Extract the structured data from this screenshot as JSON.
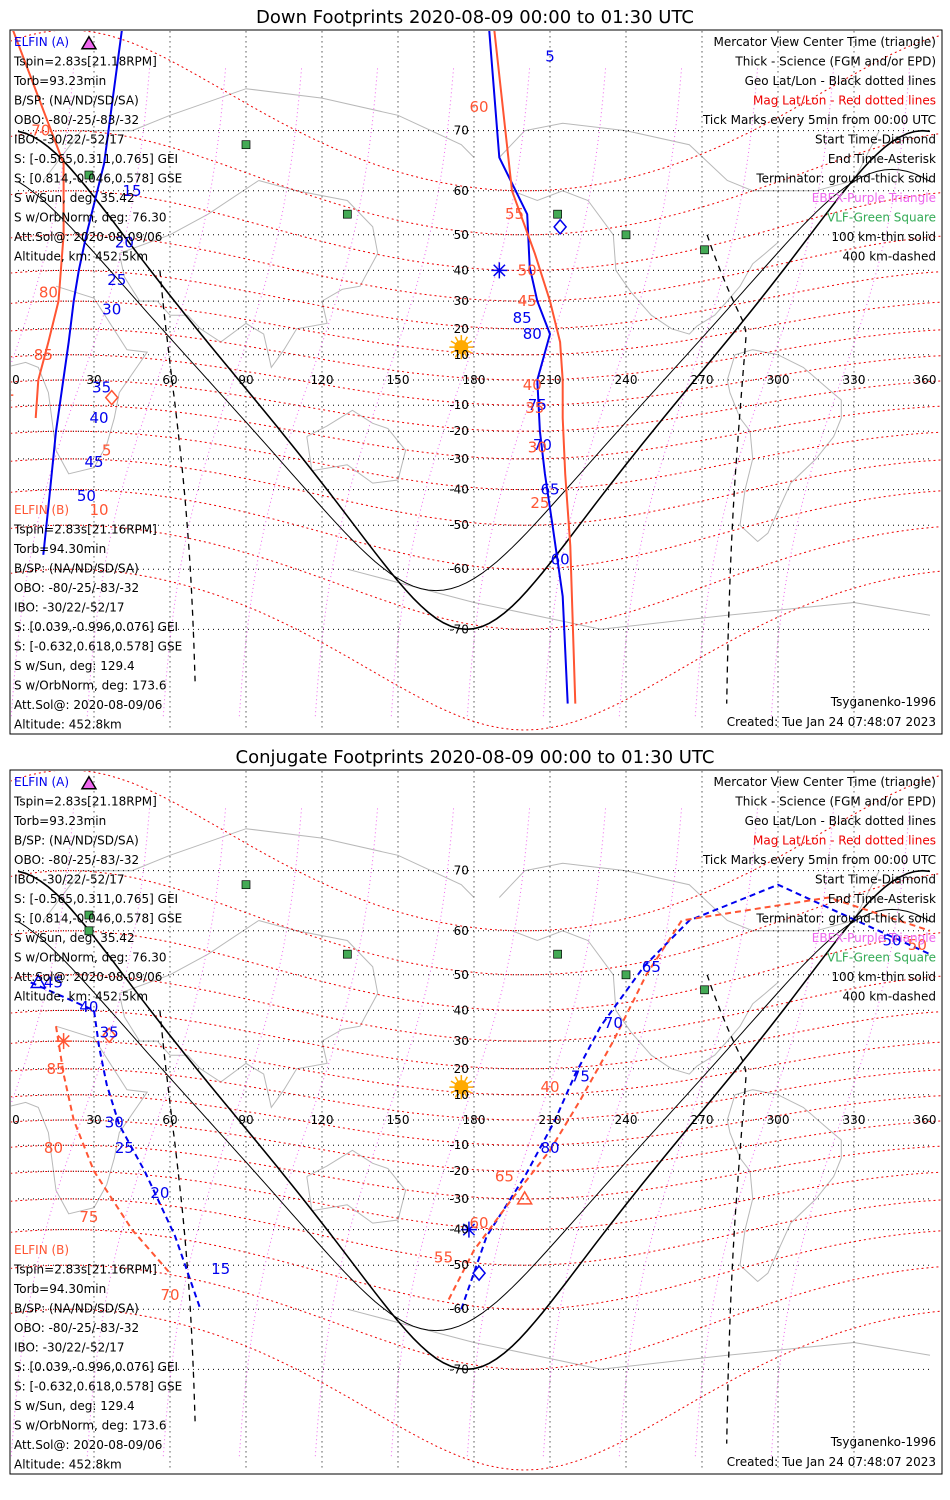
{
  "colors": {
    "elfin_a": "#0000ee",
    "elfin_b": "#ff5533",
    "geo_grid": "#000000",
    "mag_grid": "#ee0000",
    "ebex": "#ee66ee",
    "vlf": "#33aa55",
    "vlf_marker": "#44aa55",
    "sun": "#ffaa00",
    "coast": "#b8b8b8"
  },
  "panels": [
    {
      "id": "down",
      "title": "Down Footprints 2020-08-09 00:00 to 01:30 UTC",
      "left_a": [
        "ELFIN (A)",
        "Tspin=2.83s[21.18RPM]",
        "Torb=93.23min",
        "B/SP: (NA/ND/SD/SA)",
        "OBO: -80/-25/-83/-32",
        "IBO: -30/22/-52/17",
        "S: [-0.565,0.311,0.765] GEI",
        "S: [0.814,-0.046,0.578] GSE",
        "S w/Sun, deg: 35.42",
        "S w/OrbNorm, deg: 76.30",
        "Att.Sol@: 2020-08-09/06",
        "Altitude, km: 452.5km"
      ],
      "left_b": [
        "ELFIN (B)",
        "Tspin=2.83s[21.16RPM]",
        "Torb=94.30min",
        "B/SP: (NA/ND/SD/SA)",
        "OBO: -80/-25/-83/-32",
        "IBO: -30/22/-52/17",
        "S: [0.039,-0.996,0.076] GEI",
        "S: [-0.632,0.618,0.578] GSE",
        "S w/Sun, deg: 129.4",
        "S w/OrbNorm, deg: 173.6",
        "Att.Sol@: 2020-08-09/06",
        "Altitude: 452.8km"
      ],
      "right": [
        "Mercator View Center Time (triangle)",
        "Thick - Science (FGM and/or EPD)",
        "Geo Lat/Lon - Black dotted lines",
        "Mag Lat/Lon - Red dotted lines",
        "Tick Marks every 5min from 00:00 UTC",
        "Start Time-Diamond",
        "End Time-Asterisk",
        "Terminator: ground-thick solid",
        "EBEX-Purple Triangle",
        "VLF-Green Square",
        "100 km-thin solid",
        "400 km-dashed"
      ],
      "model": "Tsyganenko-1996",
      "created": "Created: Tue Jan 24 07:48:07 2023",
      "lon_ticks": [
        "0",
        "30",
        "60",
        "90",
        "120",
        "150",
        "180",
        "210",
        "240",
        "270",
        "300",
        "330",
        "360"
      ],
      "lat_ticks": [
        "70",
        "60",
        "50",
        "40",
        "30",
        "20",
        "10",
        "-10",
        "-20",
        "-30",
        "-40",
        "-50",
        "-60",
        "-70"
      ],
      "labels_a": [
        "5",
        "15",
        "20",
        "25",
        "30",
        "35",
        "40",
        "45",
        "50",
        "85",
        "80",
        "75",
        "70",
        "65",
        "60"
      ],
      "labels_b": [
        "60",
        "55",
        "50",
        "45",
        "40",
        "35",
        "30",
        "25",
        "70",
        "80",
        "85",
        "5",
        "10"
      ]
    },
    {
      "id": "conj",
      "title": "Conjugate Footprints 2020-08-09 00:00 to 01:30 UTC",
      "left_a": [
        "ELFIN (A)",
        "Tspin=2.83s[21.18RPM]",
        "Torb=93.23min",
        "B/SP: (NA/ND/SD/SA)",
        "OBO: -80/-25/-83/-32",
        "IBO: -30/22/-52/17",
        "S: [-0.565,0.311,0.765] GEI",
        "S: [0.814,-0.046,0.578] GSE",
        "S w/Sun, deg: 35.42",
        "S w/OrbNorm, deg: 76.30",
        "Att.Sol@: 2020-08-09/06",
        "Altitude, km: 452.5km"
      ],
      "left_b": [
        "ELFIN (B)",
        "Tspin=2.83s[21.16RPM]",
        "Torb=94.30min",
        "B/SP: (NA/ND/SD/SA)",
        "OBO: -80/-25/-83/-32",
        "IBO: -30/22/-52/17",
        "S: [0.039,-0.996,0.076] GEI",
        "S: [-0.632,0.618,0.578] GSE",
        "S w/Sun, deg: 129.4",
        "S w/OrbNorm, deg: 173.6",
        "Att.Sol@: 2020-08-09/06",
        "Altitude: 452.8km"
      ],
      "right": [
        "Mercator View Center Time (triangle)",
        "Thick - Science (FGM and/or EPD)",
        "Geo Lat/Lon - Black dotted lines",
        "Mag Lat/Lon - Red dotted lines",
        "Tick Marks every 5min from 00:00 UTC",
        "Start Time-Diamond",
        "End Time-Asterisk",
        "Terminator: ground-thick solid",
        "EBEX-Purple Triangle",
        "VLF-Green Square",
        "100 km-thin solid",
        "400 km-dashed"
      ],
      "model": "Tsyganenko-1996",
      "created": "Created: Tue Jan 24 07:48:07 2023",
      "lon_ticks": [
        "0",
        "30",
        "60",
        "90",
        "120",
        "150",
        "180",
        "210",
        "240",
        "270",
        "300",
        "330",
        "360"
      ],
      "lat_ticks": [
        "70",
        "60",
        "50",
        "40",
        "30",
        "20",
        "10",
        "-10",
        "-20",
        "-30",
        "-40",
        "-50",
        "-60",
        "-70"
      ],
      "labels_a": [
        "45",
        "40",
        "35",
        "30",
        "25",
        "20",
        "15",
        "80",
        "75",
        "70",
        "65",
        "50"
      ],
      "labels_b": [
        "85",
        "80",
        "75",
        "70",
        "40",
        "55",
        "60",
        "65",
        "50"
      ]
    }
  ],
  "chart_data": [
    {
      "type": "scatter",
      "title": "Down Footprints 2020-08-09 00:00 to 01:30 UTC",
      "projection": "mercator",
      "x_axis": {
        "label": "",
        "range": [
          0,
          360
        ],
        "ticks": [
          0,
          30,
          60,
          90,
          120,
          150,
          180,
          210,
          240,
          270,
          300,
          330,
          360
        ]
      },
      "y_axis": {
        "label": "",
        "range": [
          -80,
          80
        ],
        "ticks": [
          70,
          60,
          50,
          40,
          30,
          20,
          10,
          -10,
          -20,
          -30,
          -40,
          -50,
          -60,
          -70
        ]
      },
      "grid": true,
      "series": [
        {
          "name": "ELFIN (A)",
          "color": "#0000ee",
          "track1": [
            [
              41,
              80
            ],
            [
              34,
              65
            ],
            [
              27,
              50
            ],
            [
              24,
              40
            ],
            [
              22,
              30
            ],
            [
              20,
              15
            ],
            [
              15,
              -20
            ],
            [
              12,
              -45
            ],
            [
              10,
              -57
            ]
          ],
          "track2": [
            [
              186,
              80
            ],
            [
              190,
              66
            ],
            [
              201,
              55
            ],
            [
              202,
              41
            ],
            [
              205,
              30
            ],
            [
              210,
              18
            ],
            [
              205,
              0
            ],
            [
              206,
              -20
            ],
            [
              208,
              -35
            ],
            [
              211,
              -50
            ],
            [
              215,
              -65
            ],
            [
              217,
              -78
            ]
          ]
        },
        {
          "name": "ELFIN (B)",
          "color": "#ff5533",
          "track1": [
            [
              -2,
              80
            ],
            [
              18,
              65
            ],
            [
              18,
              50
            ],
            [
              16,
              30
            ],
            [
              12,
              15
            ],
            [
              8,
              0
            ],
            [
              7,
              -15
            ]
          ],
          "track2": [
            [
              188,
              80
            ],
            [
              195,
              60
            ],
            [
              204,
              45
            ],
            [
              210,
              30
            ],
            [
              214,
              15
            ],
            [
              215,
              0
            ],
            [
              215,
              -15
            ],
            [
              216,
              -35
            ],
            [
              218,
              -55
            ],
            [
              220,
              -78
            ]
          ]
        }
      ],
      "markers": {
        "sun": [
          [
            175,
            13
          ]
        ],
        "vlf": [
          [
            90,
            68
          ],
          [
            28,
            63
          ],
          [
            130,
            55
          ],
          [
            213,
            55
          ],
          [
            240,
            50
          ],
          [
            271,
            46
          ]
        ],
        "start_a": [
          [
            214,
            52
          ]
        ],
        "end_a": [
          [
            190,
            40
          ]
        ],
        "start_b": [
          [
            37,
            -7
          ]
        ],
        "end_b": [
          [
            -5,
            -6
          ]
        ]
      },
      "labels_a": [
        [
          210,
          78,
          "5"
        ],
        [
          45,
          60,
          "15"
        ],
        [
          42,
          48,
          "20"
        ],
        [
          39,
          37,
          "25"
        ],
        [
          37,
          27,
          "30"
        ],
        [
          33,
          -3,
          "35"
        ],
        [
          32,
          -15,
          "40"
        ],
        [
          30,
          -31,
          "45"
        ],
        [
          27,
          -42,
          "50"
        ],
        [
          199,
          24,
          "85"
        ],
        [
          203,
          18,
          "80"
        ],
        [
          205,
          -10,
          "75"
        ],
        [
          207,
          -25,
          "70"
        ],
        [
          210,
          -40,
          "65"
        ],
        [
          214,
          -58,
          "60"
        ]
      ],
      "labels_b": [
        [
          182,
          73,
          "60"
        ],
        [
          196,
          55,
          "55"
        ],
        [
          201,
          40,
          "50"
        ],
        [
          201,
          30,
          "45"
        ],
        [
          203,
          -2,
          "40"
        ],
        [
          204,
          -11,
          "35"
        ],
        [
          205,
          -26,
          "30"
        ],
        [
          206,
          -44,
          "25"
        ],
        [
          9,
          70,
          "70"
        ],
        [
          12,
          33,
          "80"
        ],
        [
          10,
          10,
          "85"
        ],
        [
          35,
          -27,
          "5"
        ],
        [
          32,
          -46,
          "10"
        ]
      ]
    },
    {
      "type": "scatter",
      "title": "Conjugate Footprints 2020-08-09 00:00 to 01:30 UTC",
      "projection": "mercator",
      "x_axis": {
        "label": "",
        "range": [
          0,
          360
        ],
        "ticks": [
          0,
          30,
          60,
          90,
          120,
          150,
          180,
          210,
          240,
          270,
          300,
          330,
          360
        ]
      },
      "y_axis": {
        "label": "",
        "range": [
          -80,
          80
        ],
        "ticks": [
          70,
          60,
          50,
          40,
          30,
          20,
          10,
          -10,
          -20,
          -30,
          -40,
          -50,
          -60,
          -70
        ]
      },
      "grid": true,
      "series": [
        {
          "name": "ELFIN (A)",
          "color": "#0000ee",
          "track1": [
            [
              5,
              48
            ],
            [
              30,
              40
            ],
            [
              32,
              28
            ],
            [
              35,
              14
            ],
            [
              40,
              -2
            ],
            [
              50,
              -20
            ],
            [
              62,
              -42
            ],
            [
              72,
              -60
            ]
          ],
          "track2": [
            [
              175,
              -60
            ],
            [
              185,
              -42
            ],
            [
              200,
              -22
            ],
            [
              212,
              0
            ],
            [
              220,
              18
            ],
            [
              230,
              35
            ],
            [
              247,
              52
            ],
            [
              265,
              62
            ],
            [
              300,
              68
            ],
            [
              360,
              55
            ]
          ]
        },
        {
          "name": "ELFIN (B)",
          "color": "#ff5533",
          "track1": [
            [
              15,
              35
            ],
            [
              18,
              18
            ],
            [
              22,
              0
            ],
            [
              30,
              -20
            ],
            [
              45,
              -40
            ],
            [
              60,
              -52
            ]
          ],
          "track2": [
            [
              170,
              -58
            ],
            [
              180,
              -46
            ],
            [
              195,
              -30
            ],
            [
              210,
              -12
            ],
            [
              222,
              8
            ],
            [
              235,
              30
            ],
            [
              248,
              50
            ],
            [
              262,
              62
            ],
            [
              320,
              66
            ],
            [
              360,
              60
            ]
          ]
        }
      ],
      "markers": {
        "sun": [
          [
            175,
            13
          ]
        ],
        "vlf": [
          [
            90,
            68
          ],
          [
            28,
            63
          ],
          [
            28,
            60
          ],
          [
            130,
            55
          ],
          [
            213,
            55
          ],
          [
            240,
            50
          ],
          [
            271,
            46
          ]
        ],
        "start_a": [
          [
            182,
            -52
          ]
        ],
        "end_a": [
          [
            178,
            -40
          ]
        ],
        "start_b": [
          [
            36,
            32
          ]
        ],
        "end_b": [
          [
            18,
            30
          ]
        ],
        "view_a": [
          [
            8,
            48
          ]
        ],
        "view_b": [
          [
            200,
            -30
          ]
        ]
      },
      "labels_a": [
        [
          14,
          48,
          "45"
        ],
        [
          28,
          41,
          "40"
        ],
        [
          36,
          33,
          "35"
        ],
        [
          38,
          -1,
          "30"
        ],
        [
          42,
          -11,
          "25"
        ],
        [
          56,
          -28,
          "20"
        ],
        [
          80,
          -51,
          "15"
        ],
        [
          210,
          -11,
          "80"
        ],
        [
          222,
          17,
          "75"
        ],
        [
          235,
          36,
          "70"
        ],
        [
          250,
          52,
          "65"
        ],
        [
          345,
          58,
          "50"
        ]
      ],
      "labels_b": [
        [
          15,
          20,
          "85"
        ],
        [
          14,
          -11,
          "80"
        ],
        [
          28,
          -36,
          "75"
        ],
        [
          60,
          -57,
          "70"
        ],
        [
          210,
          13,
          "40"
        ],
        [
          168,
          -48,
          "55"
        ],
        [
          182,
          -38,
          "60"
        ],
        [
          192,
          -22,
          "65"
        ],
        [
          355,
          57,
          "50"
        ]
      ]
    }
  ]
}
